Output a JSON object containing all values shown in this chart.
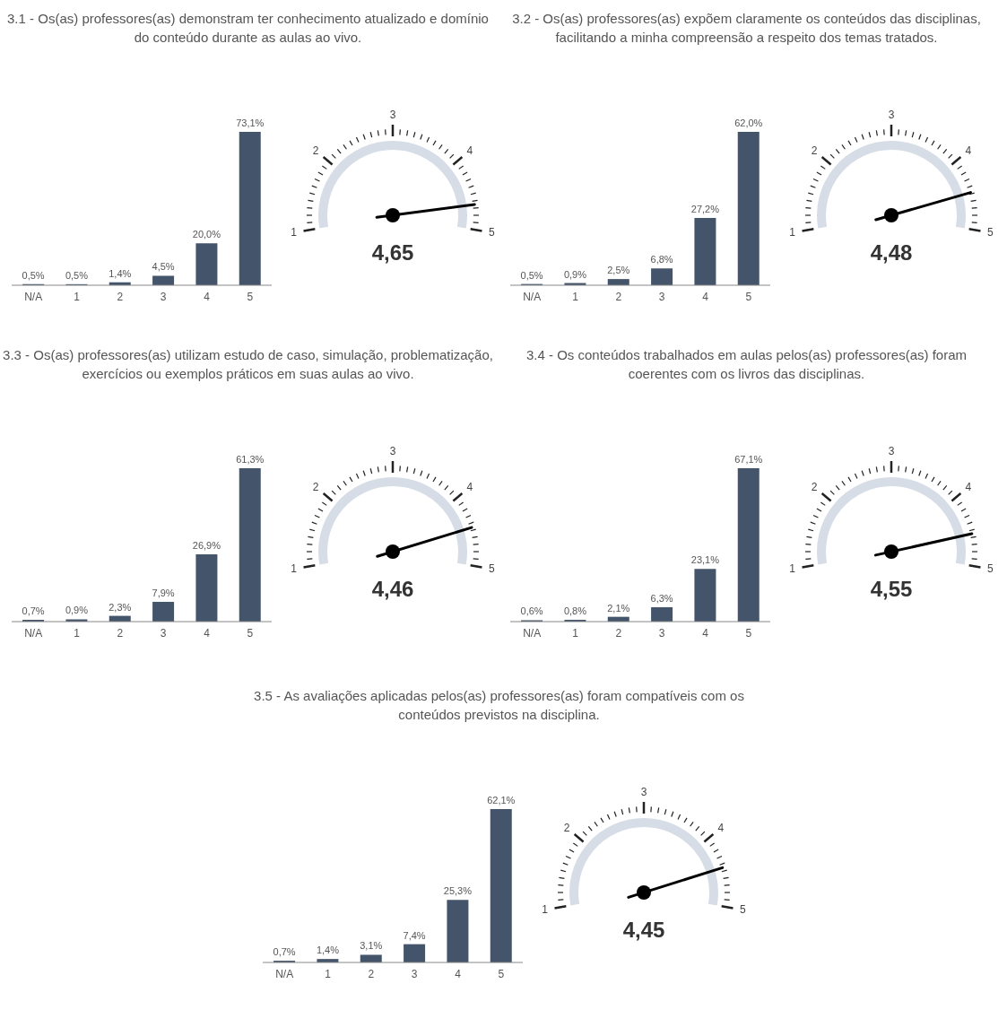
{
  "chart_data": [
    {
      "type": "bar",
      "title": "3.1 - Os(as) professores(as) demonstram ter conhecimento atualizado e domínio do conteúdo durante as aulas ao vivo.",
      "categories": [
        "N/A",
        "1",
        "2",
        "3",
        "4",
        "5"
      ],
      "values": [
        0.5,
        0.5,
        1.4,
        4.5,
        20.0,
        73.1
      ],
      "value_labels": [
        "0,5%",
        "0,5%",
        "1,4%",
        "4,5%",
        "20,0%",
        "73,1%"
      ],
      "color": "#44546a"
    },
    {
      "type": "other",
      "values": [
        4.65
      ],
      "value_labels": [
        "4,65"
      ],
      "annotations": [
        "1",
        "2",
        "3",
        "4",
        "5"
      ],
      "color": "#d6dde6"
    },
    {
      "type": "bar",
      "title": "3.2 - Os(as) professores(as) expõem claramente os conteúdos das disciplinas, facilitando a minha compreensão a respeito dos temas tratados.",
      "categories": [
        "N/A",
        "1",
        "2",
        "3",
        "4",
        "5"
      ],
      "values": [
        0.5,
        0.9,
        2.5,
        6.8,
        27.2,
        62.0
      ],
      "value_labels": [
        "0,5%",
        "0,9%",
        "2,5%",
        "6,8%",
        "27,2%",
        "62,0%"
      ],
      "color": "#44546a"
    },
    {
      "type": "other",
      "values": [
        4.48
      ],
      "value_labels": [
        "4,48"
      ],
      "annotations": [
        "1",
        "2",
        "3",
        "4",
        "5"
      ],
      "color": "#d6dde6"
    },
    {
      "type": "bar",
      "title": "3.3 - Os(as) professores(as) utilizam estudo de caso, simulação, problematização, exercícios ou exemplos práticos em suas aulas ao vivo.",
      "categories": [
        "N/A",
        "1",
        "2",
        "3",
        "4",
        "5"
      ],
      "values": [
        0.7,
        0.9,
        2.3,
        7.9,
        26.9,
        61.3
      ],
      "value_labels": [
        "0,7%",
        "0,9%",
        "2,3%",
        "7,9%",
        "26,9%",
        "61,3%"
      ],
      "color": "#44546a"
    },
    {
      "type": "other",
      "values": [
        4.46
      ],
      "value_labels": [
        "4,46"
      ],
      "annotations": [
        "1",
        "2",
        "3",
        "4",
        "5"
      ],
      "color": "#d6dde6"
    },
    {
      "type": "bar",
      "title": "3.4 - Os conteúdos trabalhados em aulas pelos(as) professores(as) foram coerentes com os livros das disciplinas.",
      "categories": [
        "N/A",
        "1",
        "2",
        "3",
        "4",
        "5"
      ],
      "values": [
        0.6,
        0.8,
        2.1,
        6.3,
        23.1,
        67.1
      ],
      "value_labels": [
        "0,6%",
        "0,8%",
        "2,1%",
        "6,3%",
        "23,1%",
        "67,1%"
      ],
      "color": "#44546a"
    },
    {
      "type": "other",
      "values": [
        4.55
      ],
      "value_labels": [
        "4,55"
      ],
      "annotations": [
        "1",
        "2",
        "3",
        "4",
        "5"
      ],
      "color": "#d6dde6"
    },
    {
      "type": "bar",
      "title": "3.5 - As avaliações aplicadas pelos(as) professores(as) foram compatíveis com os conteúdos previstos na disciplina.",
      "categories": [
        "N/A",
        "1",
        "2",
        "3",
        "4",
        "5"
      ],
      "values": [
        0.7,
        1.4,
        3.1,
        7.4,
        25.3,
        62.1
      ],
      "value_labels": [
        "0,7%",
        "1,4%",
        "3,1%",
        "7,4%",
        "25,3%",
        "62,1%"
      ],
      "color": "#44546a"
    },
    {
      "type": "other",
      "values": [
        4.45
      ],
      "value_labels": [
        "4,45"
      ],
      "annotations": [
        "1",
        "2",
        "3",
        "4",
        "5"
      ],
      "color": "#d6dde6"
    }
  ]
}
